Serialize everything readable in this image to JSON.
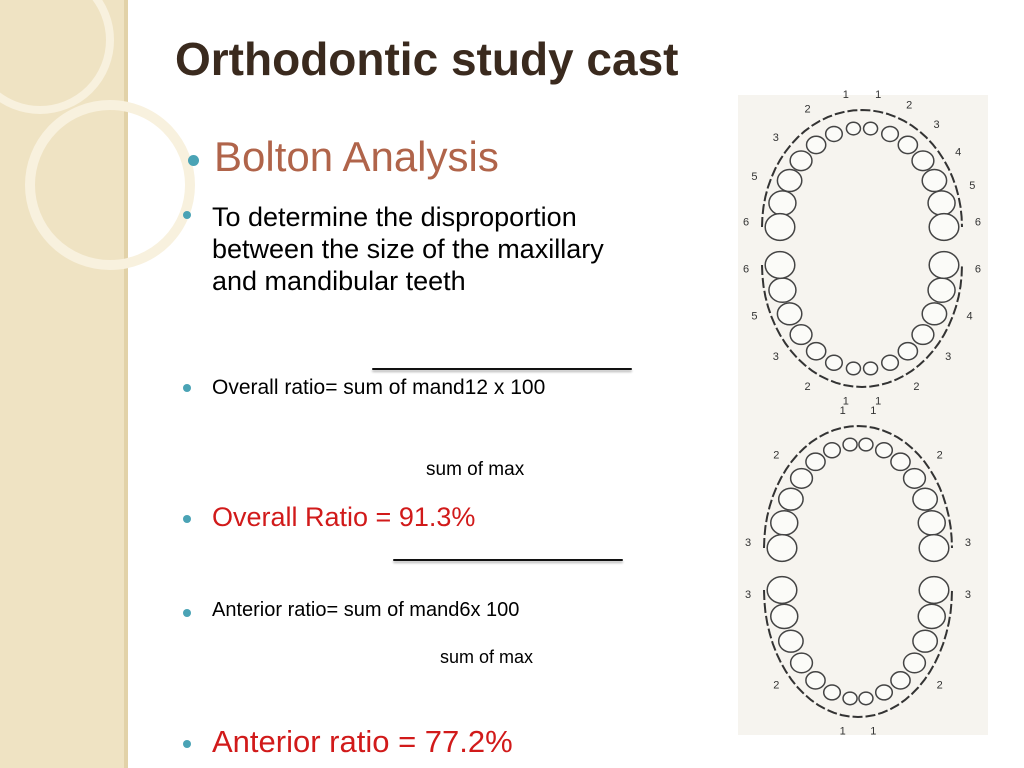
{
  "slide": {
    "title": "Orthodontic study cast",
    "heading": "Bolton Analysis",
    "bullets": [
      "To determine the disproportion between the size of the maxillary and mandibular teeth",
      "Overall ratio= sum of mand12 x 100",
      "Overall Ratio = 91.3%",
      "Anterior ratio= sum of mand6x 100",
      "Anterior ratio = 77.2%"
    ],
    "denominators": [
      "sum of max",
      "sum of max"
    ]
  },
  "diagram": {
    "arches": [
      {
        "left": [
          "1",
          "2",
          "3",
          "5",
          "6"
        ],
        "right": [
          "1",
          "2",
          "3",
          "4",
          "5",
          "6"
        ]
      },
      {
        "left": [
          "1",
          "2",
          "3",
          "5",
          "6"
        ],
        "right": [
          "1",
          "2",
          "3",
          "4",
          "6"
        ]
      },
      {
        "left": [
          "1",
          "2",
          "3"
        ],
        "right": [
          "1",
          "2",
          "3"
        ]
      },
      {
        "left": [
          "1",
          "2",
          "3"
        ],
        "right": [
          "1",
          "2",
          "3"
        ]
      }
    ]
  }
}
